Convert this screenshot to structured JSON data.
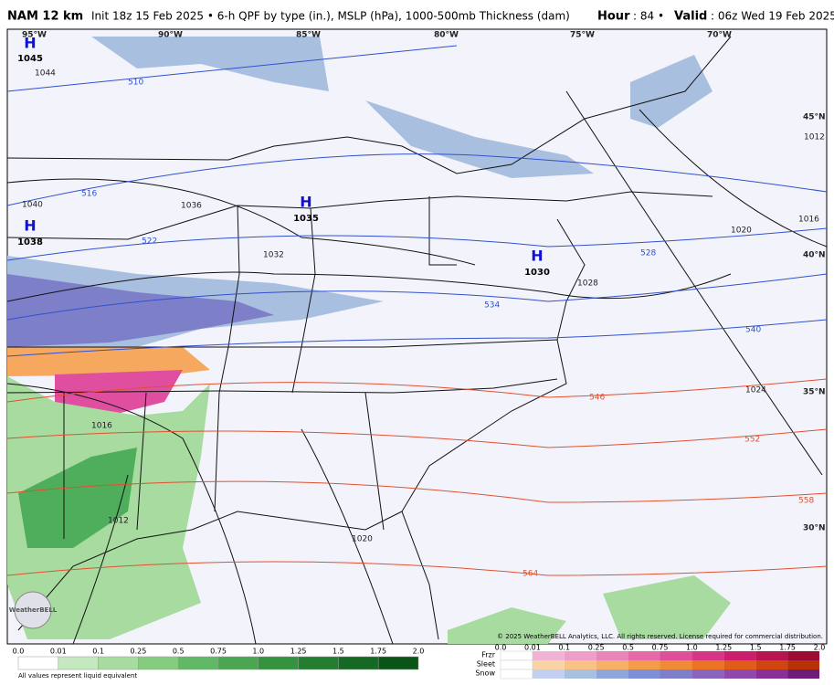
{
  "header": {
    "model": "NAM 12 km",
    "description": "Init 18z 15 Feb 2025 • 6-h QPF by type (in.), MSLP (hPa), 1000-500mb Thickness (dam)",
    "hour_label": "Hour",
    "hour_value": ": 84 •",
    "valid_label": "Valid",
    "valid_value": ": 06z Wed 19 Feb 2025"
  },
  "longitudes": [
    "95°W",
    "90°W",
    "85°W",
    "80°W",
    "75°W",
    "70°W"
  ],
  "latitudes": [
    "45°N",
    "40°N",
    "35°N",
    "30°N"
  ],
  "highs": [
    {
      "symbol": "H",
      "pressure": "1045"
    },
    {
      "symbol": "H",
      "pressure": "1038"
    },
    {
      "symbol": "H",
      "pressure": "1035"
    },
    {
      "symbol": "H",
      "pressure": "1030"
    }
  ],
  "isobar_labels": [
    "1044",
    "1040",
    "1036",
    "1032",
    "1028",
    "1024",
    "1020",
    "1020",
    "1016",
    "1016",
    "1012",
    "1012"
  ],
  "thickness_labels": [
    "510",
    "516",
    "522",
    "528",
    "534",
    "540",
    "546",
    "552",
    "558",
    "564"
  ],
  "copyright": "© 2025 WeatherBELL Analytics, LLC. All rights reserved. License required for commercial distribution.",
  "logo": "WeatherBELL",
  "legend": {
    "rain_scale": [
      "0.0",
      "0.01",
      "0.1",
      "0.25",
      "0.5",
      "0.75",
      "1.0",
      "1.25",
      "1.5",
      "1.75",
      "2.0"
    ],
    "note": "All values represent liquid equivalent",
    "types": [
      "Frzr",
      "Sleet",
      "Snow"
    ],
    "type_scale": [
      "0.0",
      "0.01",
      "0.1",
      "0.25",
      "0.5",
      "0.75",
      "1.0",
      "1.25",
      "1.5",
      "1.75",
      "2.0"
    ]
  }
}
